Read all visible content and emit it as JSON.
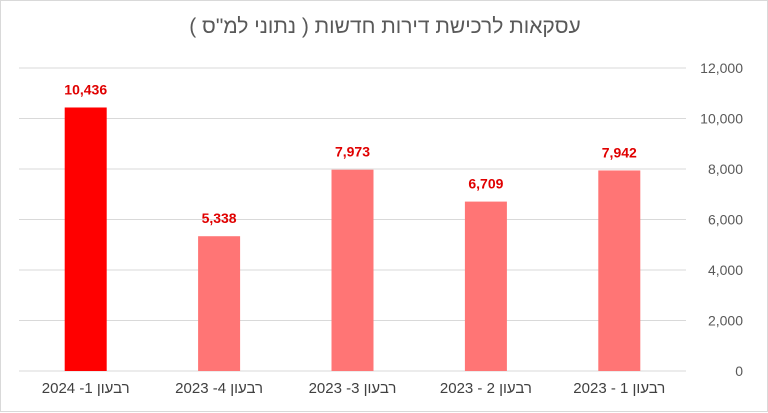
{
  "chart_data": {
    "type": "bar",
    "title": "עסקאות לרכישת דירות חדשות  ( נתוני למ\"ס )",
    "categories": [
      "רבעון 1- 2024",
      "רבעון 4- 2023",
      "רבעון 3- 2023",
      "רבעון 2 - 2023",
      "רבעון 1 - 2023"
    ],
    "values": [
      10436,
      5338,
      7973,
      6709,
      7942
    ],
    "data_labels": [
      "10,436",
      "5,338",
      "7,973",
      "6,709",
      "7,942"
    ],
    "ylim": [
      0,
      12000
    ],
    "yticks": [
      0,
      2000,
      4000,
      6000,
      8000,
      10000,
      12000
    ],
    "ytick_labels": [
      "0",
      "2,000",
      "4,000",
      "6,000",
      "8,000",
      "10,000",
      "12,000"
    ],
    "y_axis_position": "right",
    "grid": true,
    "legend": "none",
    "colors": {
      "highlight_bar": "#ff0000",
      "bar": "#ff7575",
      "data_label": "#e00000",
      "grid": "#d9d9d9"
    }
  }
}
